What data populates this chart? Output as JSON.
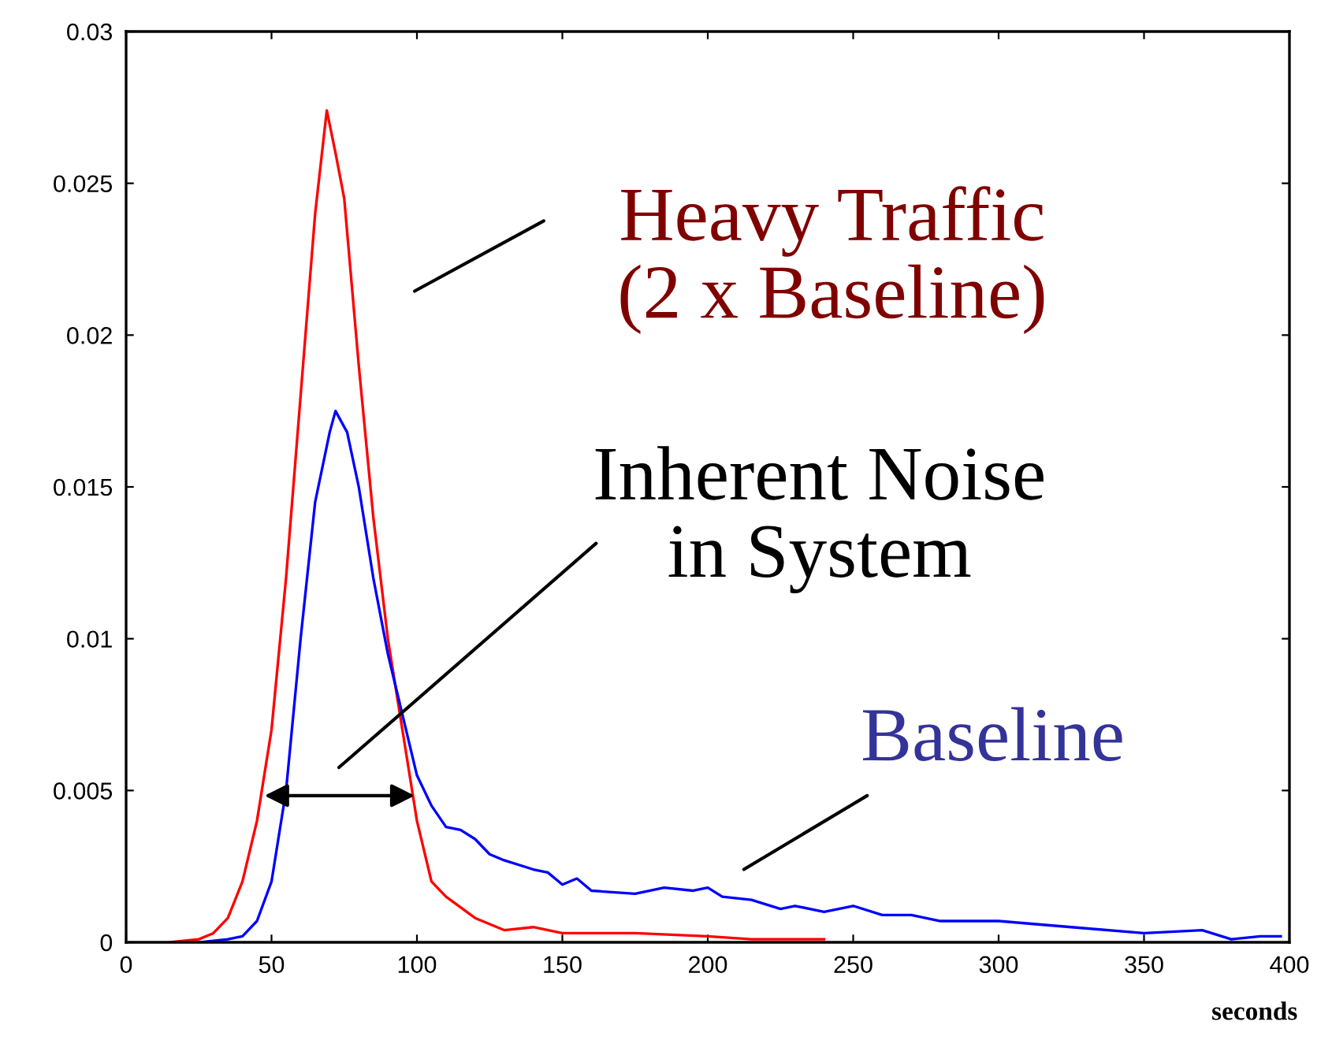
{
  "chart_data": {
    "type": "line",
    "xlabel": "seconds",
    "xlim": [
      0,
      400
    ],
    "ylim": [
      0,
      0.03
    ],
    "xticks": [
      0,
      50,
      100,
      150,
      200,
      250,
      300,
      350,
      400
    ],
    "yticks": [
      0,
      0.005,
      0.01,
      0.015,
      0.02,
      0.025,
      0.03
    ],
    "grid": false,
    "marker": "none",
    "line_style": "solid",
    "series": [
      {
        "color": "#ff0000",
        "x": [
          15,
          25,
          30,
          35,
          40,
          45,
          50,
          55,
          60,
          65,
          69,
          72,
          75,
          80,
          85,
          90,
          95,
          100,
          105,
          110,
          120,
          130,
          140,
          150,
          175,
          200,
          215,
          240
        ],
        "values": [
          0,
          0.0001,
          0.0003,
          0.0008,
          0.002,
          0.004,
          0.007,
          0.012,
          0.018,
          0.024,
          0.0274,
          0.026,
          0.0245,
          0.019,
          0.014,
          0.01,
          0.007,
          0.004,
          0.002,
          0.0015,
          0.0008,
          0.0004,
          0.0005,
          0.0003,
          0.0003,
          0.0002,
          0.0001,
          0.0001
        ]
      },
      {
        "color": "#0000ff",
        "x": [
          25,
          35,
          40,
          45,
          50,
          55,
          60,
          65,
          70,
          72,
          76,
          80,
          85,
          90,
          95,
          100,
          105,
          110,
          115,
          120,
          125,
          130,
          140,
          145,
          150,
          155,
          160,
          175,
          185,
          195,
          200,
          205,
          215,
          225,
          230,
          240,
          250,
          260,
          270,
          280,
          300,
          325,
          350,
          370,
          380,
          390,
          397
        ],
        "values": [
          0,
          0.0001,
          0.0002,
          0.0007,
          0.002,
          0.005,
          0.01,
          0.0145,
          0.0168,
          0.0175,
          0.0168,
          0.015,
          0.012,
          0.0095,
          0.0075,
          0.0055,
          0.0045,
          0.0038,
          0.0037,
          0.0034,
          0.0029,
          0.0027,
          0.0024,
          0.0023,
          0.0019,
          0.0021,
          0.0017,
          0.0016,
          0.0018,
          0.0017,
          0.0018,
          0.0015,
          0.0014,
          0.0011,
          0.0012,
          0.001,
          0.0012,
          0.0009,
          0.0009,
          0.0007,
          0.0007,
          0.0005,
          0.0003,
          0.0004,
          0.0001,
          0.0002,
          0.0002
        ]
      }
    ],
    "annotations": [
      "Heavy Traffic\n(2 x Baseline)",
      "Inherent Noise\nin System",
      "Baseline"
    ]
  }
}
